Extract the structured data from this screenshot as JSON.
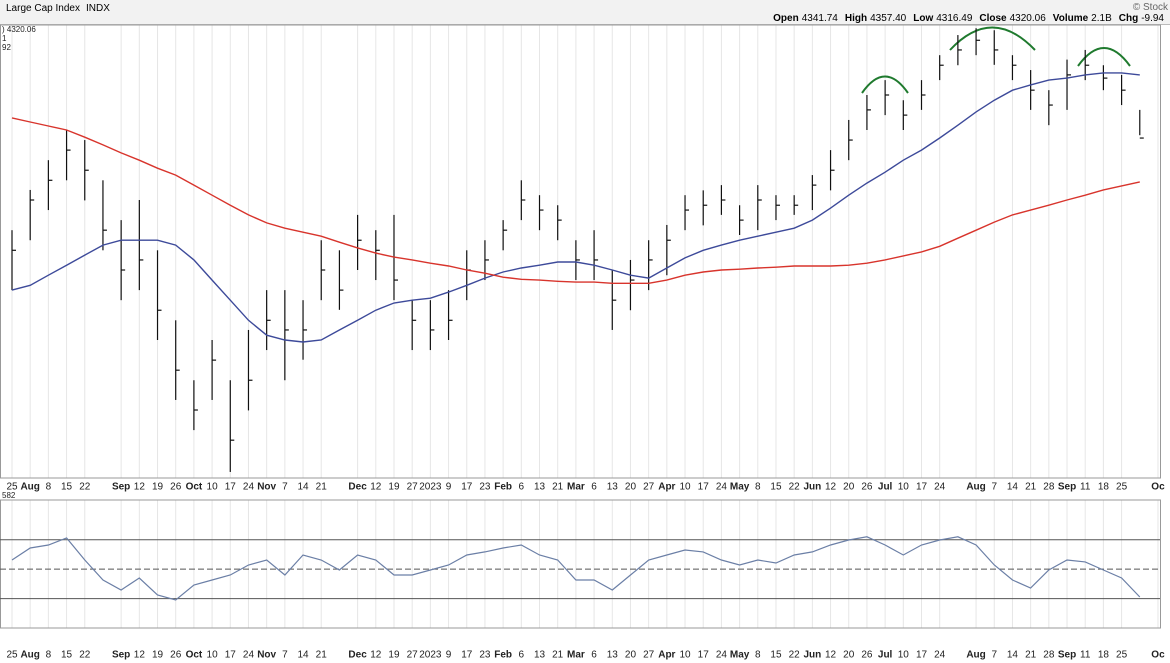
{
  "header": {
    "title": "Large Cap Index",
    "symbol": "INDX",
    "source": "© Stock",
    "quote": [
      {
        "label": "Open",
        "value": "4341.74"
      },
      {
        "label": "High",
        "value": "4357.40"
      },
      {
        "label": "Low",
        "value": "4316.49"
      },
      {
        "label": "Close",
        "value": "4320.06"
      },
      {
        "label": "Volume",
        "value": "2.1B"
      },
      {
        "label": "Chg",
        "value": "-9.94"
      }
    ]
  },
  "chart_data": [
    {
      "type": "ohlc",
      "legend": [
        {
          "text": ") 4320.06",
          "color": "#222"
        },
        {
          "text": "1",
          "color": "#3d4a9a"
        },
        {
          "text": "92",
          "color": "#d8342c"
        }
      ],
      "categories": [
        "25",
        "Aug",
        "8",
        "15",
        "22",
        null,
        "Sep",
        "12",
        "19",
        "26",
        "Oct",
        "10",
        "17",
        "24",
        "Nov",
        "7",
        "14",
        "21",
        null,
        "Dec",
        "12",
        "19",
        "27",
        "2023",
        "9",
        "17",
        "23",
        "Feb",
        "6",
        "13",
        "21",
        "Mar",
        "6",
        "13",
        "20",
        "27",
        "Apr",
        "10",
        "17",
        "24",
        "May",
        "8",
        "15",
        "22",
        "Jun",
        "12",
        "20",
        "26",
        "Jul",
        "10",
        "17",
        "24",
        null,
        "Aug",
        "7",
        "14",
        "21",
        "28",
        "Sep",
        "11",
        "18",
        "25",
        null,
        "Oc"
      ],
      "ylim": [
        3476,
        4602
      ],
      "grid": true,
      "series": [
        {
          "color": "#111111",
          "high": [
            4092,
            4192,
            4266,
            4341,
            4316,
            4216,
            4117,
            4167,
            4042,
            3868,
            3719,
            3819,
            3719,
            3844,
            3943,
            3943,
            3918,
            4067,
            4042,
            4130,
            4092,
            4130,
            3918,
            3918,
            3943,
            4042,
            4067,
            4117,
            4216,
            4179,
            4154,
            4067,
            4092,
            3993,
            4018,
            4067,
            4105,
            4179,
            4191,
            4204,
            4154,
            4204,
            4179,
            4179,
            4229,
            4291,
            4366,
            4428,
            4465,
            4415,
            4465,
            4527,
            4577,
            4594,
            4589,
            4527,
            4490,
            4440,
            4516,
            4540,
            4502,
            4478,
            4391,
            null
          ],
          "low": [
            3943,
            4067,
            4142,
            4216,
            4166,
            4042,
            3918,
            3943,
            3819,
            3670,
            3595,
            3670,
            3491,
            3644,
            3794,
            3719,
            3770,
            3918,
            3894,
            3993,
            3968,
            3918,
            3794,
            3794,
            3819,
            3918,
            3968,
            4042,
            4117,
            4092,
            4067,
            3968,
            3968,
            3844,
            3893,
            3943,
            3980,
            4092,
            4104,
            4130,
            4080,
            4092,
            4117,
            4130,
            4142,
            4191,
            4266,
            4341,
            4378,
            4341,
            4391,
            4465,
            4502,
            4527,
            4503,
            4465,
            4391,
            4353,
            4391,
            4465,
            4440,
            4403,
            4328,
            null
          ],
          "values": [
            4042,
            4167,
            4216,
            4291,
            4241,
            4092,
            3993,
            4018,
            3893,
            3744,
            3645,
            3769,
            3570,
            3719,
            3868,
            3844,
            3844,
            3993,
            3943,
            4067,
            4042,
            3968,
            3868,
            3844,
            3868,
            3993,
            4018,
            4092,
            4167,
            4142,
            4117,
            4018,
            4018,
            3918,
            3968,
            4018,
            4067,
            4142,
            4154,
            4167,
            4117,
            4167,
            4154,
            4154,
            4204,
            4241,
            4316,
            4391,
            4428,
            4378,
            4428,
            4502,
            4540,
            4564,
            4540,
            4502,
            4440,
            4403,
            4478,
            4502,
            4470,
            4440,
            4321,
            null
          ]
        },
        {
          "color": "#3d4a9a",
          "values": [
            3943,
            3955,
            3980,
            4005,
            4030,
            4055,
            4067,
            4067,
            4067,
            4055,
            4018,
            3968,
            3918,
            3868,
            3831,
            3819,
            3814,
            3819,
            3844,
            3868,
            3893,
            3911,
            3918,
            3923,
            3938,
            3955,
            3973,
            3988,
            3998,
            4005,
            4013,
            4013,
            4005,
            3993,
            3980,
            3973,
            3998,
            4023,
            4042,
            4055,
            4067,
            4077,
            4087,
            4097,
            4117,
            4147,
            4179,
            4209,
            4236,
            4266,
            4291,
            4321,
            4353,
            4386,
            4415,
            4440,
            4453,
            4465,
            4470,
            4478,
            4483,
            4483,
            4478,
            null
          ]
        },
        {
          "color": "#d8342c",
          "values": [
            4371,
            4361,
            4351,
            4341,
            4323,
            4304,
            4284,
            4266,
            4246,
            4229,
            4204,
            4179,
            4154,
            4130,
            4110,
            4097,
            4087,
            4077,
            4062,
            4048,
            4035,
            4025,
            4018,
            4010,
            4003,
            3993,
            3985,
            3975,
            3970,
            3968,
            3965,
            3963,
            3963,
            3960,
            3960,
            3960,
            3968,
            3980,
            3988,
            3993,
            3995,
            3998,
            4000,
            4003,
            4003,
            4003,
            4005,
            4010,
            4018,
            4028,
            4038,
            4052,
            4072,
            4092,
            4112,
            4130,
            4142,
            4154,
            4167,
            4179,
            4192,
            4202,
            4212,
            null
          ]
        }
      ]
    },
    {
      "type": "line",
      "legend": [
        {
          "text": "582",
          "color": "#222"
        }
      ],
      "ylim": [
        10,
        97
      ],
      "levels": [
        30,
        50,
        70
      ],
      "color": "#6b7fa6",
      "values": [
        56.2,
        64.4,
        66.4,
        71.2,
        56.2,
        42.6,
        35.8,
        44,
        32.4,
        29,
        39.2,
        42.6,
        46,
        52.8,
        56.2,
        46,
        59.6,
        56.2,
        49.4,
        59.6,
        56.2,
        46,
        46,
        49.4,
        52.8,
        59.6,
        61.7,
        64.4,
        66.4,
        59.6,
        56.2,
        42.6,
        42.6,
        35.8,
        46,
        56.2,
        59.6,
        63,
        61.7,
        56.2,
        52.8,
        56.2,
        54.2,
        59.6,
        61.7,
        66.4,
        69.8,
        72,
        66.4,
        59.6,
        66.4,
        69.8,
        72,
        66.4,
        52.8,
        42.6,
        37.2,
        49.4,
        56.2,
        54.9,
        49.4,
        44,
        31.1,
        null
      ]
    }
  ]
}
